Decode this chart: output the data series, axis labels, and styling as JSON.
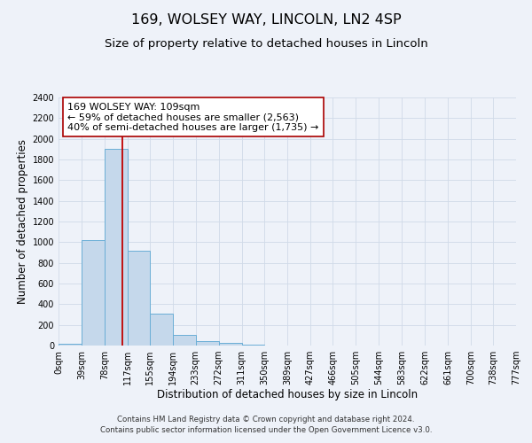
{
  "title": "169, WOLSEY WAY, LINCOLN, LN2 4SP",
  "subtitle": "Size of property relative to detached houses in Lincoln",
  "xlabel": "Distribution of detached houses by size in Lincoln",
  "ylabel": "Number of detached properties",
  "footer_line1": "Contains HM Land Registry data © Crown copyright and database right 2024.",
  "footer_line2": "Contains public sector information licensed under the Open Government Licence v3.0.",
  "annotation_line1": "169 WOLSEY WAY: 109sqm",
  "annotation_line2": "← 59% of detached houses are smaller (2,563)",
  "annotation_line3": "40% of semi-detached houses are larger (1,735) →",
  "bar_edges": [
    0,
    39,
    78,
    117,
    155,
    194,
    233,
    272,
    311,
    350,
    389,
    427,
    466,
    505,
    544,
    583,
    622,
    661,
    700,
    738,
    777
  ],
  "bar_heights": [
    20,
    1020,
    1900,
    920,
    310,
    105,
    45,
    25,
    10,
    0,
    0,
    0,
    0,
    0,
    0,
    0,
    0,
    0,
    0,
    0
  ],
  "bar_color": "#c5d8eb",
  "bar_edge_color": "#6aaed6",
  "bar_linewidth": 0.7,
  "vline_x": 109,
  "vline_color": "#c00000",
  "vline_linewidth": 1.3,
  "ylim": [
    0,
    2400
  ],
  "yticks": [
    0,
    200,
    400,
    600,
    800,
    1000,
    1200,
    1400,
    1600,
    1800,
    2000,
    2200,
    2400
  ],
  "xtick_labels": [
    "0sqm",
    "39sqm",
    "78sqm",
    "117sqm",
    "155sqm",
    "194sqm",
    "233sqm",
    "272sqm",
    "311sqm",
    "350sqm",
    "389sqm",
    "427sqm",
    "466sqm",
    "505sqm",
    "544sqm",
    "583sqm",
    "622sqm",
    "661sqm",
    "700sqm",
    "738sqm",
    "777sqm"
  ],
  "grid_color": "#d0dae8",
  "background_color": "#eef2f9",
  "plot_bg_color": "#eef2f9",
  "annotation_box_color": "#ffffff",
  "annotation_box_edge": "#aa0000",
  "title_fontsize": 11.5,
  "subtitle_fontsize": 9.5,
  "axis_label_fontsize": 8.5,
  "tick_fontsize": 7,
  "annotation_fontsize": 8,
  "footer_fontsize": 6.2
}
